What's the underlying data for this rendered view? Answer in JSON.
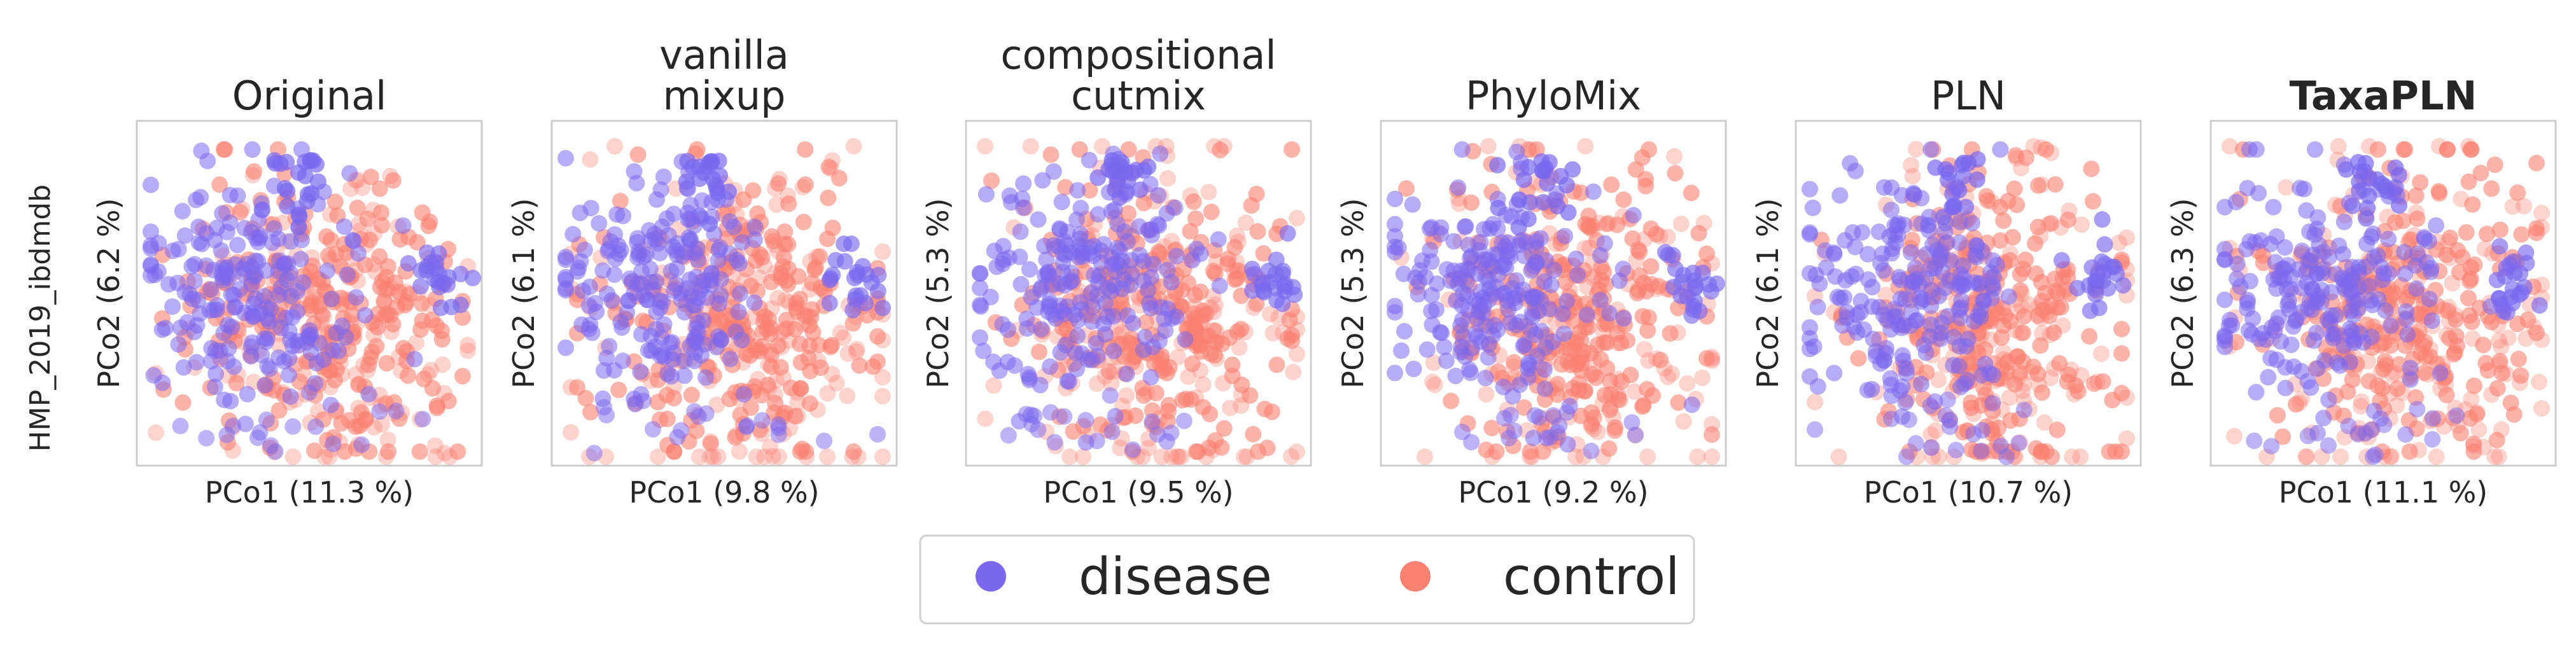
{
  "row_label": "HMP_2019_ibdmdb",
  "colors": {
    "disease": "#7b68ee",
    "control": "#fa8072"
  },
  "legend": {
    "entries": [
      {
        "label": "disease",
        "color": "#7b68ee"
      },
      {
        "label": "control",
        "color": "#fa8072"
      }
    ]
  },
  "chart_data": [
    {
      "type": "scatter",
      "title": [
        "Original"
      ],
      "bold": false,
      "xlabel": "PCo1 (11.3 %)",
      "ylabel": "PCo2 (6.2 %)",
      "series": [
        {
          "name": "disease",
          "color": "#7b68ee"
        },
        {
          "name": "control",
          "color": "#fa8072"
        }
      ]
    },
    {
      "type": "scatter",
      "title": [
        "vanilla",
        "mixup"
      ],
      "bold": false,
      "xlabel": "PCo1 (9.8 %)",
      "ylabel": "PCo2 (6.1 %)",
      "series": [
        {
          "name": "disease",
          "color": "#7b68ee"
        },
        {
          "name": "control",
          "color": "#fa8072"
        }
      ]
    },
    {
      "type": "scatter",
      "title": [
        "compositional",
        "cutmix"
      ],
      "bold": false,
      "xlabel": "PCo1 (9.5 %)",
      "ylabel": "PCo2 (5.3 %)",
      "series": [
        {
          "name": "disease",
          "color": "#7b68ee"
        },
        {
          "name": "control",
          "color": "#fa8072"
        }
      ]
    },
    {
      "type": "scatter",
      "title": [
        "PhyloMix"
      ],
      "bold": false,
      "xlabel": "PCo1 (9.2 %)",
      "ylabel": "PCo2 (5.3 %)",
      "series": [
        {
          "name": "disease",
          "color": "#7b68ee"
        },
        {
          "name": "control",
          "color": "#fa8072"
        }
      ]
    },
    {
      "type": "scatter",
      "title": [
        "PLN"
      ],
      "bold": false,
      "xlabel": "PCo1 (10.7 %)",
      "ylabel": "PCo2 (6.1 %)",
      "series": [
        {
          "name": "disease",
          "color": "#7b68ee"
        },
        {
          "name": "control",
          "color": "#fa8072"
        }
      ]
    },
    {
      "type": "scatter",
      "title": [
        "TaxaPLN"
      ],
      "bold": true,
      "xlabel": "PCo1 (11.1 %)",
      "ylabel": "PCo2 (6.3 %)",
      "series": [
        {
          "name": "disease",
          "color": "#7b68ee"
        },
        {
          "name": "control",
          "color": "#fa8072"
        }
      ]
    }
  ]
}
